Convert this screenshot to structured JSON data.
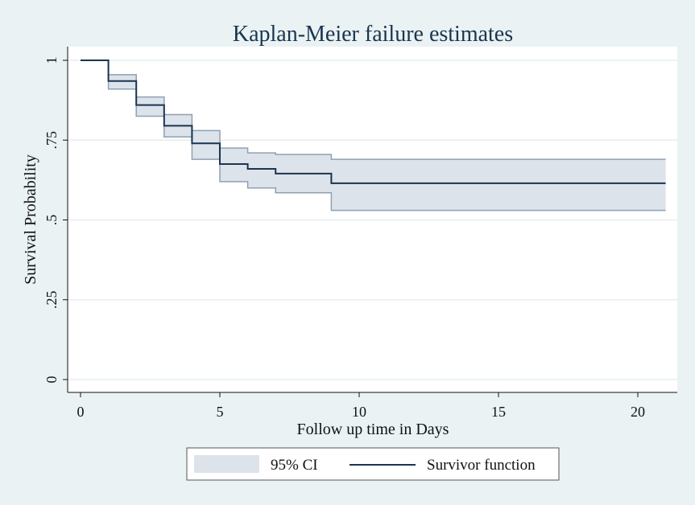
{
  "chart_data": {
    "type": "line",
    "title": "Kaplan-Meier failure estimates",
    "xlabel": "Follow up time in Days",
    "ylabel": "Survival Probability",
    "xlim": [
      0,
      21
    ],
    "ylim": [
      0,
      1
    ],
    "x_ticks": [
      0,
      5,
      10,
      15,
      20
    ],
    "x_tick_labels": [
      "0",
      "5",
      "10",
      "15",
      "20"
    ],
    "y_ticks": [
      0,
      0.25,
      0.5,
      0.75,
      1
    ],
    "y_tick_labels": [
      "0",
      ".25",
      ".5",
      ".75",
      "1"
    ],
    "grid": true,
    "legend_position": "bottom",
    "series": [
      {
        "name": "Survivor function",
        "kind": "step",
        "color": "#1a3550",
        "x": [
          0,
          1,
          2,
          3,
          4,
          5,
          6,
          7,
          9,
          21
        ],
        "y": [
          1.0,
          0.935,
          0.86,
          0.795,
          0.74,
          0.675,
          0.66,
          0.645,
          0.615,
          0.615
        ]
      },
      {
        "name": "95% CI",
        "kind": "step-band",
        "fill": "#dde3ea",
        "stroke": "#8ea0b3",
        "x": [
          0,
          1,
          2,
          3,
          4,
          5,
          6,
          7,
          9,
          21
        ],
        "upper": [
          1.0,
          0.955,
          0.885,
          0.83,
          0.78,
          0.725,
          0.71,
          0.705,
          0.69,
          0.69
        ],
        "lower": [
          1.0,
          0.91,
          0.825,
          0.76,
          0.69,
          0.62,
          0.6,
          0.585,
          0.53,
          0.53
        ]
      }
    ],
    "legend": {
      "items": [
        {
          "label": "95% CI",
          "swatch": "band"
        },
        {
          "label": "Survivor function",
          "swatch": "line"
        }
      ]
    }
  },
  "colors": {
    "background": "#eaf2f3",
    "plot_background": "#ffffff",
    "grid": "#e3eef0",
    "axis": "#111111",
    "title": "#1a3550"
  }
}
